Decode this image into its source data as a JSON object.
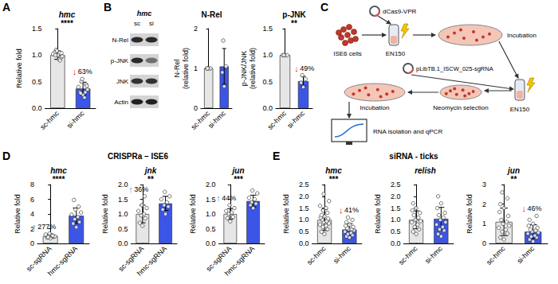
{
  "panel_letters": [
    "A",
    "B",
    "C",
    "D",
    "E"
  ],
  "groups": [
    {
      "title": "CRISPRa – ISE6"
    },
    {
      "title": "siRNA - ticks"
    }
  ],
  "blot": {
    "title": "hmc",
    "lanes": [
      "sc",
      "si"
    ],
    "rows": [
      "N-Rel",
      "p-JNK",
      "JNK",
      "Actin"
    ]
  },
  "diagram": {
    "plasmid_1": "dCas9-VPR",
    "cells": "ISE6 cells",
    "electroporation_1": "EN150",
    "step_1": "Incubation",
    "plasmid_2": "pLibTB.1_ISCW_025-sgRNA",
    "selection": "Neomycin selection",
    "electroporation_2": "EN150",
    "step_2": "Incubation",
    "readout": "RNA isolation and qPCR"
  },
  "chart_data": [
    {
      "type": "bar",
      "title": "hmc",
      "categories": [
        "sc-hmc",
        "si-hmc"
      ],
      "values": [
        1.0,
        0.37
      ],
      "errors": [
        0.08,
        0.12
      ],
      "points": [
        [
          1.0,
          1.05,
          0.95,
          1.1,
          0.92,
          1.02,
          0.98,
          1.08,
          0.9,
          1.0,
          1.04
        ],
        [
          0.25,
          0.3,
          0.45,
          0.5,
          0.2,
          0.4,
          0.35,
          0.55,
          0.3,
          0.28,
          0.42
        ]
      ],
      "colors": [
        "#e6e6e6",
        "#3b55e6"
      ],
      "ylim": [
        0,
        1.5
      ],
      "yticks": [
        {
          "value": 0,
          "label": "0.0"
        },
        0.5,
        {
          "value": 1,
          "label": "1.0"
        },
        1.5
      ],
      "y_label": "Relative fold",
      "grid": false,
      "significance": "****",
      "change": "↓63%"
    },
    {
      "type": "bar",
      "title": "N-Rel",
      "categories": [
        "sc-hmc",
        "si-hmc"
      ],
      "values": [
        1.0,
        1.05
      ],
      "errors": [
        0,
        0.45
      ],
      "points": [
        [
          1.0,
          1.0,
          1.0,
          1.0
        ],
        [
          0.55,
          0.9,
          1.05,
          1.7
        ]
      ],
      "colors": [
        "#e6e6e6",
        "#3b55e6"
      ],
      "ylim": [
        0,
        2
      ],
      "yticks": [
        0,
        1,
        2
      ],
      "y_label": "N-Rel (relative fold)",
      "grid": false
    },
    {
      "type": "bar",
      "title": "p-JNK",
      "categories": [
        "sc-hmc",
        "si-hmc"
      ],
      "values": [
        1.0,
        0.51
      ],
      "errors": [
        0,
        0.09
      ],
      "points": [
        [
          1.0,
          1.0,
          1.0,
          1.0
        ],
        [
          0.4,
          0.48,
          0.55,
          0.62
        ]
      ],
      "colors": [
        "#e6e6e6",
        "#3b55e6"
      ],
      "ylim": [
        0,
        1.5
      ],
      "yticks": [
        {
          "value": 0,
          "label": "0.0"
        },
        0.5,
        {
          "value": 1,
          "label": "1.0"
        },
        1.5
      ],
      "y_label": "p-JNK/JNK (relative fold)",
      "grid": false,
      "significance": "**",
      "change": "↓49%"
    },
    {
      "type": "bar",
      "title": "hmc",
      "categories": [
        "sc-sgRNA",
        "hmc-sgRNA"
      ],
      "values": [
        1.0,
        3.77
      ],
      "errors": [
        0.25,
        1.05
      ],
      "points": [
        [
          0.7,
          0.8,
          0.9,
          1.0,
          1.1,
          1.2,
          0.95,
          1.35,
          1.05,
          0.85
        ],
        [
          2.2,
          2.7,
          2.9,
          3.3,
          3.6,
          3.9,
          4.2,
          4.6,
          5.0,
          5.9
        ]
      ],
      "colors": [
        "#e6e6e6",
        "#3b55e6"
      ],
      "ylim": [
        0,
        8
      ],
      "yticks": [
        0,
        2,
        4,
        6,
        8
      ],
      "y_label": "Relative fold",
      "grid": false,
      "significance": "****",
      "change": "↑277%"
    },
    {
      "type": "bar",
      "title": "jnk",
      "categories": [
        "sc-sgRNA",
        "hmc-sgRNA"
      ],
      "values": [
        1.0,
        1.36
      ],
      "errors": [
        0.3,
        0.24
      ],
      "points": [
        [
          0.6,
          0.7,
          0.85,
          0.95,
          1.0,
          1.1,
          1.2,
          1.3,
          1.6
        ],
        [
          1.0,
          1.15,
          1.25,
          1.3,
          1.4,
          1.5,
          1.6,
          1.75
        ]
      ],
      "colors": [
        "#e6e6e6",
        "#3b55e6"
      ],
      "ylim": [
        0,
        2
      ],
      "yticks": [
        {
          "value": 0,
          "label": "0.0"
        },
        0.5,
        {
          "value": 1,
          "label": "1.0"
        },
        1.5,
        {
          "value": 2,
          "label": "2.0"
        }
      ],
      "y_label": "Relative fold",
      "grid": false,
      "significance": "**",
      "change": "↑36%"
    },
    {
      "type": "bar",
      "title": "jun",
      "categories": [
        "sc-sgRNA",
        "hmc-sgRNA"
      ],
      "values": [
        1.0,
        1.44
      ],
      "errors": [
        0.18,
        0.2
      ],
      "points": [
        [
          0.75,
          0.85,
          0.9,
          1.0,
          1.05,
          1.1,
          1.2,
          1.3
        ],
        [
          1.2,
          1.3,
          1.35,
          1.4,
          1.5,
          1.55,
          1.7,
          1.8
        ]
      ],
      "colors": [
        "#e6e6e6",
        "#3b55e6"
      ],
      "ylim": [
        0,
        2
      ],
      "yticks": [
        {
          "value": 0,
          "label": "0.0"
        },
        0.5,
        {
          "value": 1,
          "label": "1.0"
        },
        1.5,
        {
          "value": 2,
          "label": "2.0"
        }
      ],
      "y_label": "Relative fold",
      "grid": false,
      "significance": "***",
      "change": "↑44%"
    },
    {
      "type": "bar",
      "title": "hmc",
      "categories": [
        "sc-hmc",
        "si-hmc"
      ],
      "values": [
        1.0,
        0.59
      ],
      "errors": [
        0.45,
        0.25
      ],
      "points": [
        [
          0.4,
          0.5,
          0.6,
          0.7,
          0.75,
          0.8,
          0.85,
          0.9,
          0.95,
          1.0,
          1.05,
          1.1,
          1.15,
          1.2,
          1.3,
          1.4,
          1.5,
          1.6,
          1.8,
          2.1
        ],
        [
          0.25,
          0.3,
          0.35,
          0.4,
          0.45,
          0.5,
          0.55,
          0.6,
          0.6,
          0.65,
          0.7,
          0.75,
          0.8,
          0.9,
          1.0,
          1.1
        ]
      ],
      "colors": [
        "#e6e6e6",
        "#3b55e6"
      ],
      "ylim": [
        0,
        2.5
      ],
      "yticks": [
        {
          "value": 0,
          "label": "0.0"
        },
        0.5,
        {
          "value": 1,
          "label": "1.0"
        },
        1.5,
        {
          "value": 2,
          "label": "2.0"
        },
        2.5
      ],
      "y_label": "Relative fold",
      "grid": false,
      "significance": "***",
      "change": "↓41%"
    },
    {
      "type": "bar",
      "title": "relish",
      "categories": [
        "sc-hmc",
        "si-hmc"
      ],
      "values": [
        1.0,
        1.05
      ],
      "errors": [
        0.38,
        0.48
      ],
      "points": [
        [
          0.4,
          0.5,
          0.6,
          0.7,
          0.8,
          0.9,
          0.95,
          1.0,
          1.1,
          1.2,
          1.3,
          1.4,
          1.5,
          1.7
        ],
        [
          0.3,
          0.4,
          0.55,
          0.6,
          0.7,
          0.8,
          0.9,
          1.0,
          1.1,
          1.2,
          1.3,
          1.5,
          1.7,
          2.0
        ]
      ],
      "colors": [
        "#e6e6e6",
        "#3b55e6"
      ],
      "ylim": [
        0,
        2.5
      ],
      "yticks": [
        {
          "value": 0,
          "label": "0.0"
        },
        0.5,
        {
          "value": 1,
          "label": "1.0"
        },
        1.5,
        {
          "value": 2,
          "label": "2.0"
        },
        2.5
      ],
      "y_label": "Relative fold",
      "grid": false
    },
    {
      "type": "bar",
      "title": "jun",
      "categories": [
        "sc-hmc",
        "si-hmc"
      ],
      "values": [
        1.1,
        0.6
      ],
      "errors": [
        0.7,
        0.35
      ],
      "points": [
        [
          0.2,
          0.3,
          0.5,
          0.6,
          0.7,
          0.8,
          0.9,
          1.0,
          1.1,
          1.2,
          1.4,
          1.6,
          1.8,
          2.0,
          2.3,
          2.6
        ],
        [
          0.1,
          0.2,
          0.3,
          0.35,
          0.4,
          0.5,
          0.55,
          0.6,
          0.65,
          0.7,
          0.8,
          0.9,
          1.0,
          1.2,
          1.4
        ]
      ],
      "colors": [
        "#e6e6e6",
        "#3b55e6"
      ],
      "ylim": [
        0,
        3
      ],
      "yticks": [
        0,
        1,
        2,
        3
      ],
      "y_label": "Relative fold",
      "grid": false,
      "significance": "**",
      "change": "↓46%"
    }
  ]
}
